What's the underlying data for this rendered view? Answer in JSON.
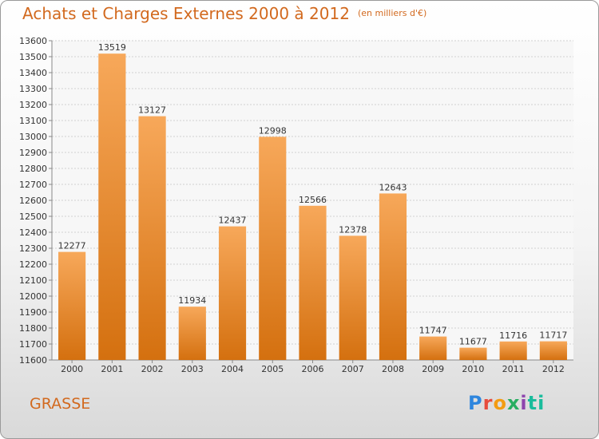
{
  "header": {
    "title": "Achats et Charges Externes 2000 à 2012",
    "unit": "(en milliers d'€)"
  },
  "footer": {
    "city": "GRASSE",
    "logo_text": "Proxiti"
  },
  "colors": {
    "bar": "#f28c28",
    "bar_light": "#f7a85a",
    "bar_dark": "#d4700f",
    "text": "#d2691e"
  },
  "chart_data": {
    "type": "bar",
    "title": "Achats et Charges Externes 2000 à 2012",
    "subtitle": "(en milliers d'€)",
    "xlabel": "",
    "ylabel": "",
    "categories": [
      "2000",
      "2001",
      "2002",
      "2003",
      "2004",
      "2005",
      "2006",
      "2007",
      "2008",
      "2009",
      "2010",
      "2011",
      "2012"
    ],
    "values": [
      12277,
      13519,
      13127,
      11934,
      12437,
      12998,
      12566,
      12378,
      12643,
      11747,
      11677,
      11716,
      11717
    ],
    "ylim": [
      11600,
      13600
    ],
    "yticks": [
      11600,
      11700,
      11800,
      11900,
      12000,
      12100,
      12200,
      12300,
      12400,
      12500,
      12600,
      12700,
      12800,
      12900,
      13000,
      13100,
      13200,
      13300,
      13400,
      13500,
      13600
    ],
    "grid": true,
    "legend": "none"
  }
}
